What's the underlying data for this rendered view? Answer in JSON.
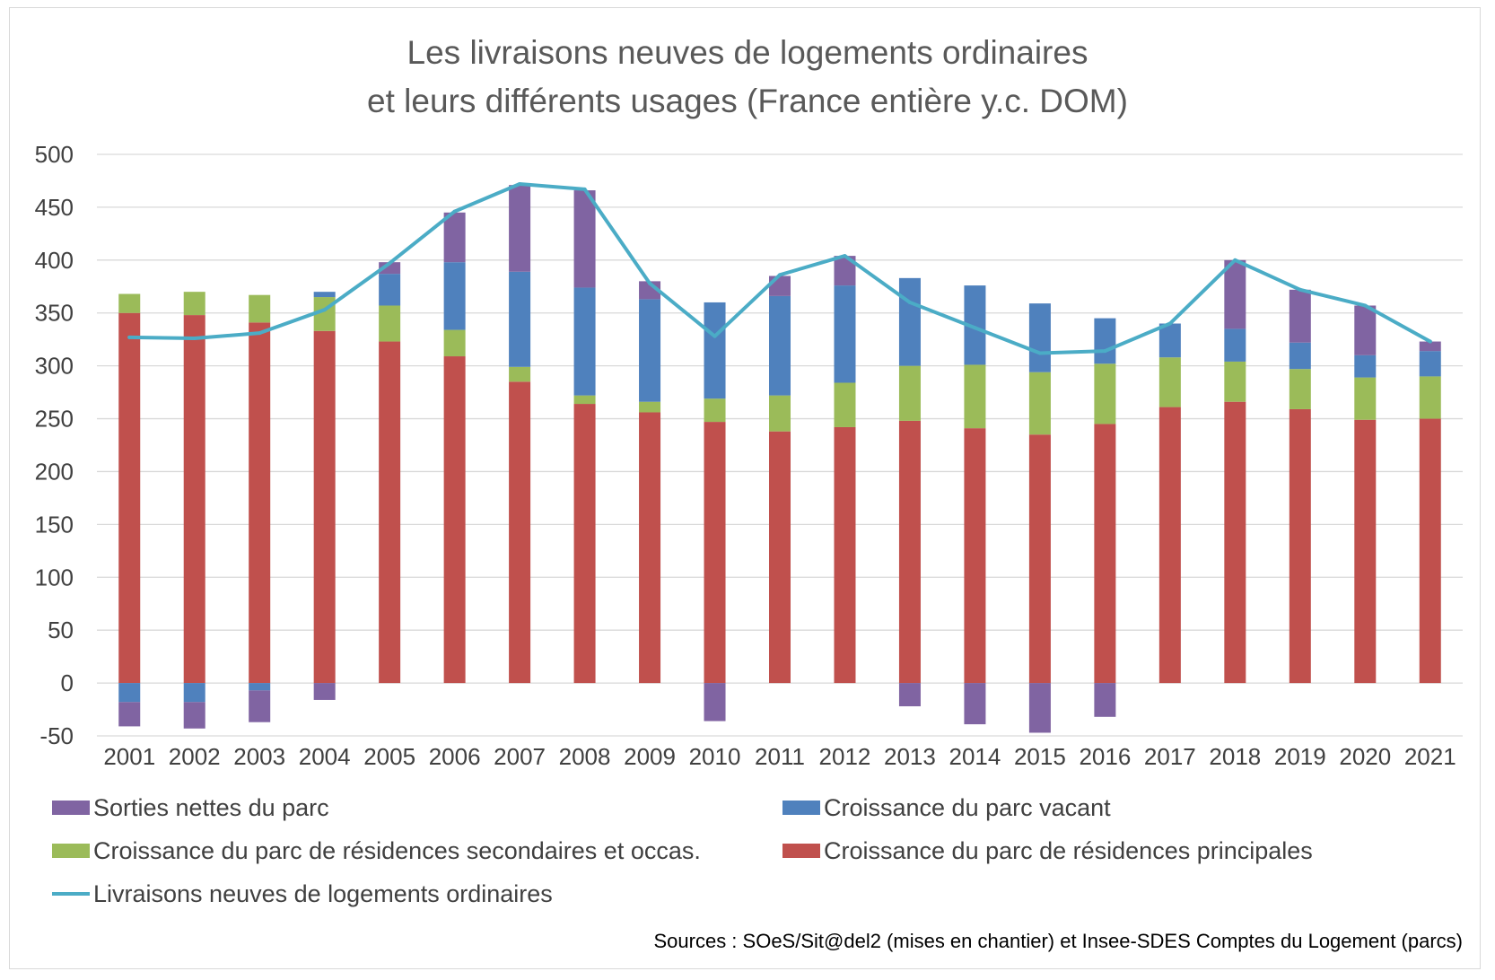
{
  "title_line1": "Les livraisons neuves de logements ordinaires",
  "title_line2": "et leurs différents usages (France entière y.c. DOM)",
  "source": "Sources : SOeS/Sit@del2 (mises en chantier) et Insee-SDES Comptes du Logement (parcs)",
  "chart_data": {
    "type": "bar",
    "stacked": true,
    "categories": [
      "2001",
      "2002",
      "2003",
      "2004",
      "2005",
      "2006",
      "2007",
      "2008",
      "2009",
      "2010",
      "2011",
      "2012",
      "2013",
      "2014",
      "2015",
      "2016",
      "2017",
      "2018",
      "2019",
      "2020",
      "2021"
    ],
    "ylim": [
      -50,
      500
    ],
    "yticks": [
      500,
      450,
      400,
      350,
      300,
      250,
      200,
      150,
      100,
      50,
      0,
      -50
    ],
    "grid": true,
    "legend_position": "bottom",
    "series": [
      {
        "name": "Croissance du parc de résidences principales",
        "color": "#c0504d",
        "values": [
          350,
          348,
          341,
          333,
          323,
          309,
          285,
          264,
          256,
          247,
          238,
          242,
          248,
          241,
          235,
          245,
          261,
          266,
          259,
          249,
          250
        ]
      },
      {
        "name": "Croissance du parc de résidences secondaires et occas.",
        "color": "#9bbb59",
        "values": [
          18,
          22,
          26,
          32,
          34,
          25,
          14,
          8,
          10,
          22,
          34,
          42,
          52,
          60,
          59,
          57,
          47,
          38,
          38,
          40,
          40
        ]
      },
      {
        "name": "Croissance du parc vacant",
        "color": "#4f81bd",
        "values": [
          -18,
          -18,
          -7,
          5,
          30,
          64,
          90,
          102,
          97,
          91,
          94,
          92,
          83,
          75,
          65,
          43,
          32,
          31,
          25,
          21,
          24
        ]
      },
      {
        "name": "Sorties nettes du parc",
        "color": "#8064a2",
        "values": [
          -23,
          -25,
          -30,
          -16,
          11,
          47,
          82,
          92,
          17,
          -36,
          19,
          28,
          -22,
          -39,
          -47,
          -32,
          0,
          65,
          50,
          47,
          9
        ]
      }
    ],
    "line_series": {
      "name": "Livraisons neuves de logements ordinaires",
      "color": "#4bacc6",
      "values": [
        327,
        326,
        331,
        353,
        397,
        446,
        472,
        467,
        378,
        328,
        386,
        404,
        360,
        336,
        312,
        314,
        340,
        400,
        372,
        357,
        323
      ]
    }
  }
}
